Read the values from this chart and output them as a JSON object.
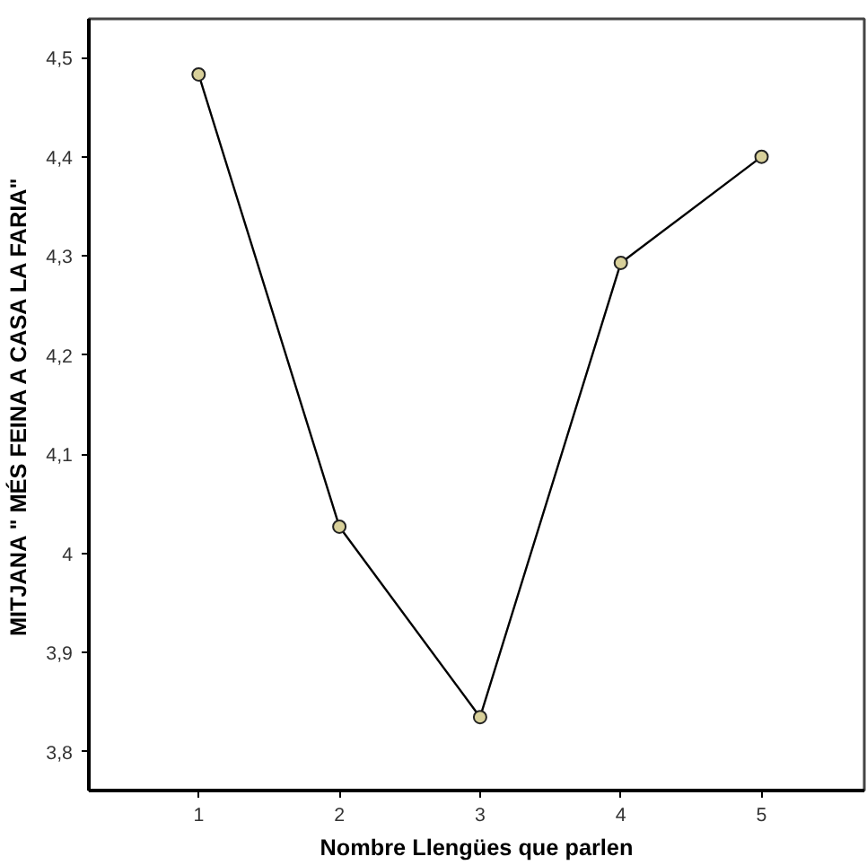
{
  "chart_data": {
    "type": "line",
    "xlabel": "Nombre Llengües que parlen",
    "ylabel": "MITJANA \" MÉS FEINA A CASA LA FARIA\"",
    "x": [
      1,
      2,
      3,
      4,
      5
    ],
    "series": [
      {
        "color": "#000000",
        "values": [
          4.483,
          4.027,
          3.835,
          4.293,
          4.4
        ]
      }
    ],
    "xlim": [
      0.22,
      5.73
    ],
    "xticks": [
      1,
      2,
      3,
      4,
      5
    ],
    "ylim": [
      3.761,
      4.539
    ],
    "yticks": [
      {
        "value": 3.8,
        "label": "3,8"
      },
      {
        "value": 3.9,
        "label": "3,9"
      },
      {
        "value": 4,
        "label": "4"
      },
      {
        "value": 4.1,
        "label": "4,1"
      },
      {
        "value": 4.2,
        "label": "4,2"
      },
      {
        "value": 4.3,
        "label": "4,3"
      },
      {
        "value": 4.4,
        "label": "4,4"
      },
      {
        "value": 4.5,
        "label": "4,5"
      }
    ],
    "marker": "circle",
    "grid": false
  }
}
